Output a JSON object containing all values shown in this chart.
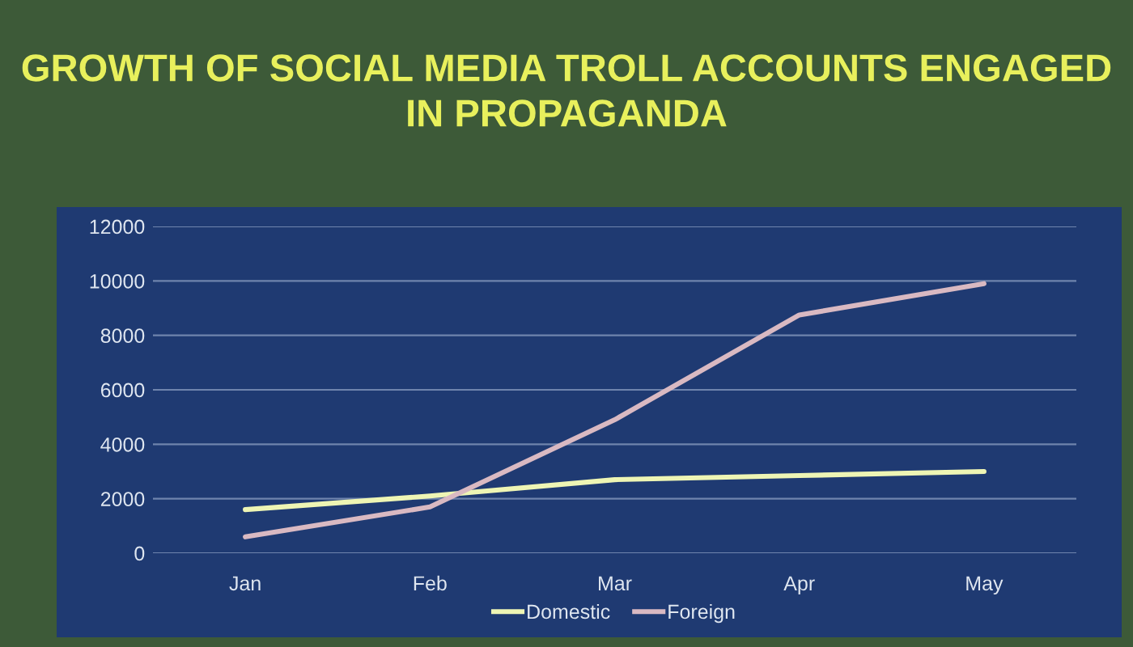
{
  "chart_data": {
    "type": "line",
    "title": "GROWTH OF SOCIAL MEDIA TROLL ACCOUNTS ENGAGED\nIN PROPAGANDA",
    "categories": [
      "Jan",
      "Feb",
      "Mar",
      "Apr",
      "May"
    ],
    "series": [
      {
        "name": "Domestic",
        "color": "#eef5b4",
        "values": [
          1600,
          2100,
          2700,
          2850,
          3000
        ]
      },
      {
        "name": "Foreign",
        "color": "#d9b9c2",
        "values": [
          600,
          1700,
          4900,
          8750,
          9900
        ]
      }
    ],
    "ylim": [
      0,
      12000
    ],
    "yticks": [
      0,
      2000,
      4000,
      6000,
      8000,
      10000,
      12000
    ],
    "grid": "y",
    "legend": "bottom",
    "marker": "none",
    "line_style": "solid"
  }
}
